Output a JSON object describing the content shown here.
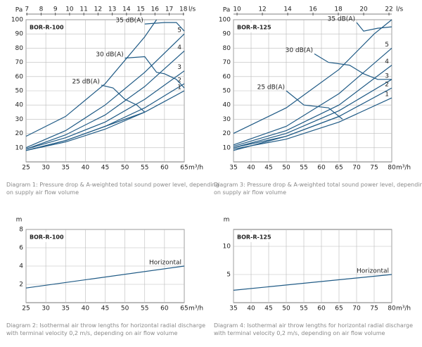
{
  "chart_data": [
    {
      "type": "line",
      "box_label": "BOR-R-100",
      "y_label": "Pa",
      "x_label": "m³/h",
      "x2_label": "l/s",
      "caption": "Diagram 1: Pressure drop & A-weighted total sound power level, depending on supply air flow volume",
      "xlim": [
        25,
        65
      ],
      "xticks": [
        25,
        30,
        35,
        40,
        45,
        50,
        55,
        60,
        65
      ],
      "x2lim": [
        6.94,
        18.06
      ],
      "x2ticks": [
        7,
        8,
        9,
        10,
        11,
        12,
        13,
        14,
        15,
        16,
        17,
        18
      ],
      "ylim": [
        0,
        100
      ],
      "yticks": [
        10,
        20,
        30,
        40,
        50,
        60,
        70,
        80,
        90,
        100
      ],
      "grid": true,
      "color": "#1f5a85",
      "series": [
        {
          "x": [
            25,
            35,
            45,
            55,
            58
          ],
          "values": [
            18,
            32,
            55,
            88,
            100
          ]
        },
        {
          "name": "5",
          "x": [
            25,
            35,
            45,
            55,
            65
          ],
          "values": [
            10,
            22,
            40,
            63,
            90
          ]
        },
        {
          "name": "4",
          "x": [
            25,
            35,
            45,
            55,
            65
          ],
          "values": [
            9,
            19,
            33,
            53,
            78
          ]
        },
        {
          "name": "3",
          "x": [
            25,
            35,
            45,
            55,
            65
          ],
          "values": [
            9,
            17,
            28,
            44,
            64
          ]
        },
        {
          "name": "2",
          "x": [
            25,
            35,
            45,
            55,
            65
          ],
          "values": [
            8,
            15,
            25,
            38,
            55
          ]
        },
        {
          "name": "1",
          "x": [
            25,
            35,
            45,
            55,
            65
          ],
          "values": [
            8,
            14,
            23,
            35,
            50
          ]
        },
        {
          "x": [
            25,
            35,
            45,
            55
          ],
          "values": [
            8,
            15,
            25,
            35
          ]
        },
        {
          "name": "25 dB(A)",
          "x": [
            44,
            47,
            50,
            53,
            55
          ],
          "values": [
            54,
            52,
            44,
            40,
            35
          ]
        },
        {
          "name": "30 dB(A)",
          "x": [
            50,
            55,
            58,
            60,
            63,
            65
          ],
          "values": [
            73,
            74,
            63,
            62,
            58,
            52
          ]
        },
        {
          "name": "35 dB(A)",
          "x": [
            55,
            60,
            63,
            65
          ],
          "values": [
            97,
            98,
            98,
            92
          ]
        }
      ]
    },
    {
      "type": "line",
      "box_label": "BOR-R-125",
      "y_label": "Pa",
      "x_label": "m³/h",
      "x2_label": "l/s",
      "caption": "Diagram 3: Pressure drop & A-weighted total sound power level, depending on supply air flow volume",
      "xlim": [
        35,
        80
      ],
      "xticks": [
        35,
        40,
        45,
        50,
        55,
        60,
        65,
        70,
        75,
        80
      ],
      "x2lim": [
        9.72,
        22.22
      ],
      "x2ticks": [
        10,
        12,
        14,
        16,
        18,
        20,
        22
      ],
      "ylim": [
        0,
        100
      ],
      "yticks": [
        10,
        20,
        30,
        40,
        50,
        60,
        70,
        80,
        90,
        100
      ],
      "grid": true,
      "color": "#1f5a85",
      "series": [
        {
          "x": [
            35,
            50,
            65,
            75,
            80
          ],
          "values": [
            20,
            38,
            65,
            90,
            100
          ]
        },
        {
          "name": "5",
          "x": [
            35,
            50,
            65,
            80
          ],
          "values": [
            12,
            25,
            48,
            80
          ]
        },
        {
          "name": "4",
          "x": [
            35,
            50,
            65,
            80
          ],
          "values": [
            11,
            22,
            40,
            68
          ]
        },
        {
          "name": "3",
          "x": [
            35,
            50,
            65,
            80
          ],
          "values": [
            10,
            20,
            36,
            58
          ]
        },
        {
          "name": "2",
          "x": [
            35,
            50,
            65,
            80
          ],
          "values": [
            10,
            18,
            32,
            52
          ]
        },
        {
          "name": "1",
          "x": [
            35,
            50,
            65,
            80
          ],
          "values": [
            9,
            16,
            28,
            45
          ]
        },
        {
          "x": [
            35,
            50,
            65
          ],
          "values": [
            8,
            18,
            32
          ]
        },
        {
          "name": "25 dB(A)",
          "x": [
            50,
            55,
            62,
            66
          ],
          "values": [
            50,
            40,
            38,
            30
          ]
        },
        {
          "name": "30 dB(A)",
          "x": [
            58,
            62,
            68,
            72,
            76,
            80
          ],
          "values": [
            76,
            70,
            68,
            62,
            58,
            58
          ]
        },
        {
          "name": "35 dB(A)",
          "x": [
            70,
            72,
            76,
            80
          ],
          "values": [
            98,
            92,
            94,
            95
          ]
        }
      ]
    },
    {
      "type": "line",
      "box_label": "BOR-R-100",
      "y_label": "m",
      "x_label": "m³/h",
      "caption": "Diagram 2: Isothermal air throw lengths for horizontal radial discharge with terminal velocity 0,2 m/s, depending on air flow volume",
      "xlim": [
        25,
        65
      ],
      "xticks": [
        25,
        30,
        35,
        40,
        45,
        50,
        55,
        60,
        65
      ],
      "ylim": [
        0,
        8
      ],
      "yticks": [
        2,
        4,
        6,
        8
      ],
      "grid": true,
      "color": "#1f5a85",
      "series": [
        {
          "name": "Horizontal",
          "x": [
            25,
            65
          ],
          "values": [
            1.6,
            4.0
          ]
        }
      ]
    },
    {
      "type": "line",
      "box_label": "BOR-R-125",
      "y_label": "m",
      "x_label": "m³/h",
      "caption": "Diagram 4: Isothermal air throw lengths for horizontal radial discharge with terminal velocity 0,2 m/s, depending on air flow volume",
      "xlim": [
        35,
        80
      ],
      "xticks": [
        35,
        40,
        45,
        50,
        55,
        60,
        65,
        70,
        75,
        80
      ],
      "ylim": [
        0,
        13
      ],
      "yticks": [
        5,
        10
      ],
      "grid": true,
      "color": "#1f5a85",
      "series": [
        {
          "name": "Horizontal",
          "x": [
            35,
            80
          ],
          "values": [
            2.2,
            5.0
          ]
        }
      ]
    }
  ]
}
